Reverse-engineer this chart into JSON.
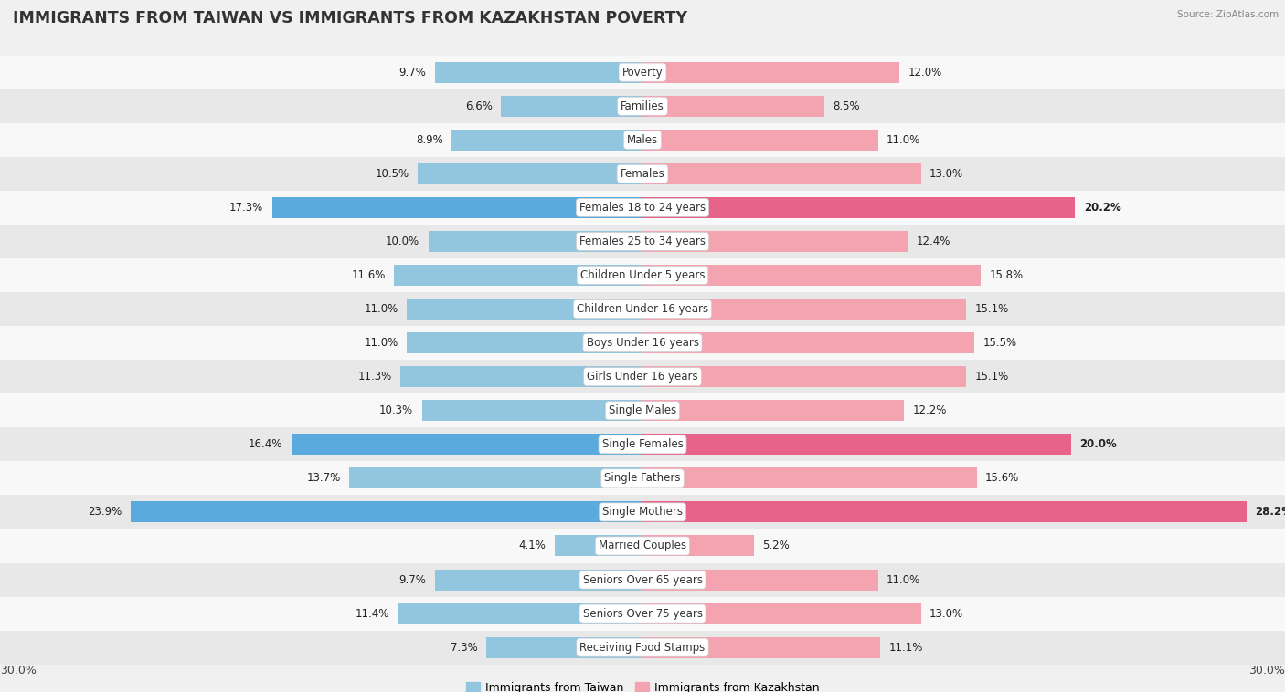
{
  "title": "IMMIGRANTS FROM TAIWAN VS IMMIGRANTS FROM KAZAKHSTAN POVERTY",
  "source": "Source: ZipAtlas.com",
  "categories": [
    "Poverty",
    "Families",
    "Males",
    "Females",
    "Females 18 to 24 years",
    "Females 25 to 34 years",
    "Children Under 5 years",
    "Children Under 16 years",
    "Boys Under 16 years",
    "Girls Under 16 years",
    "Single Males",
    "Single Females",
    "Single Fathers",
    "Single Mothers",
    "Married Couples",
    "Seniors Over 65 years",
    "Seniors Over 75 years",
    "Receiving Food Stamps"
  ],
  "taiwan_values": [
    9.7,
    6.6,
    8.9,
    10.5,
    17.3,
    10.0,
    11.6,
    11.0,
    11.0,
    11.3,
    10.3,
    16.4,
    13.7,
    23.9,
    4.1,
    9.7,
    11.4,
    7.3
  ],
  "kazakhstan_values": [
    12.0,
    8.5,
    11.0,
    13.0,
    20.2,
    12.4,
    15.8,
    15.1,
    15.5,
    15.1,
    12.2,
    20.0,
    15.6,
    28.2,
    5.2,
    11.0,
    13.0,
    11.1
  ],
  "taiwan_color": "#92c5de",
  "kazakhstan_color": "#f4a4b0",
  "taiwan_highlight_color": "#5aaadd",
  "kazakhstan_highlight_color": "#e8638a",
  "highlight_rows": [
    4,
    11,
    13
  ],
  "axis_limit": 30.0,
  "bar_height": 0.62,
  "bg_color": "#f0f0f0",
  "row_bg_light": "#f8f8f8",
  "row_bg_dark": "#e8e8e8",
  "label_fontsize": 8.5,
  "value_fontsize": 8.5,
  "title_fontsize": 12.5
}
